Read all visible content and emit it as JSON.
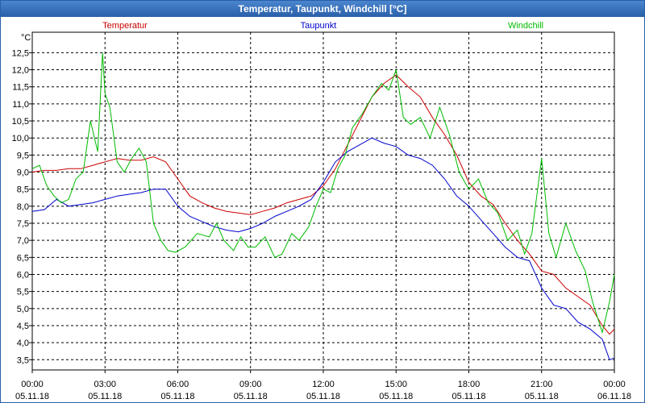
{
  "window": {
    "title": "Temperatur, Taupunkt, Windchill [°C]"
  },
  "chart_data": {
    "type": "line",
    "title": "Temperatur, Taupunkt, Windchill [°C]",
    "ylabel": "°C",
    "ylim": [
      3.2,
      13.1
    ],
    "xlim": [
      0,
      24
    ],
    "grid": true,
    "yticks": [
      3.5,
      4.0,
      4.5,
      5.0,
      5.5,
      6.0,
      6.5,
      7.0,
      7.5,
      8.0,
      8.5,
      9.0,
      9.5,
      10.0,
      10.5,
      11.0,
      11.5,
      12.0,
      12.5
    ],
    "ytick_labels": [
      "3,5",
      "4,0",
      "4,5",
      "5,0",
      "5,5",
      "6,0",
      "6,5",
      "7,0",
      "7,5",
      "8,0",
      "8,5",
      "9,0",
      "9,5",
      "10,0",
      "10,5",
      "11,0",
      "11,5",
      "12,0",
      "12,5"
    ],
    "xticks": [
      0,
      3,
      6,
      9,
      12,
      15,
      18,
      21,
      24
    ],
    "xtick_time_labels": [
      "00:00",
      "03:00",
      "06:00",
      "09:00",
      "12:00",
      "15:00",
      "18:00",
      "21:00",
      "00:00"
    ],
    "xtick_date_labels": [
      "05.11.18",
      "05.11.18",
      "05.11.18",
      "05.11.18",
      "05.11.18",
      "05.11.18",
      "05.11.18",
      "05.11.18",
      "06.11.18"
    ],
    "legend": [
      "Temperatur",
      "Taupunkt",
      "Windchill"
    ],
    "series": [
      {
        "name": "Temperatur",
        "color": "#cc0000",
        "x": [
          0,
          0.5,
          1,
          1.5,
          2,
          2.5,
          3,
          3.5,
          4,
          4.5,
          5,
          5.5,
          6,
          6.5,
          7,
          7.5,
          8,
          8.5,
          9,
          9.5,
          10,
          10.5,
          11,
          11.5,
          12,
          12.5,
          13,
          13.5,
          14,
          14.5,
          15,
          15.5,
          16,
          16.5,
          17,
          17.5,
          18,
          18.5,
          19,
          19.5,
          20,
          20.5,
          21,
          21.5,
          22,
          22.5,
          23,
          23.5,
          23.8,
          24
        ],
        "values": [
          9.0,
          9.05,
          9.05,
          9.1,
          9.1,
          9.2,
          9.3,
          9.4,
          9.35,
          9.35,
          9.45,
          9.3,
          8.8,
          8.3,
          8.1,
          7.95,
          7.85,
          7.8,
          7.75,
          7.85,
          7.95,
          8.1,
          8.2,
          8.3,
          8.6,
          9.1,
          9.8,
          10.5,
          11.2,
          11.6,
          11.85,
          11.5,
          11.2,
          10.6,
          10.1,
          9.5,
          8.7,
          8.3,
          8.05,
          7.5,
          7.0,
          6.6,
          6.1,
          6.0,
          5.6,
          5.35,
          5.1,
          4.5,
          4.25,
          4.4
        ]
      },
      {
        "name": "Taupunkt",
        "color": "#0000cc",
        "x": [
          0,
          0.5,
          1,
          1.5,
          2,
          2.5,
          3,
          3.5,
          4,
          4.5,
          5,
          5.5,
          6,
          6.5,
          7,
          7.5,
          8,
          8.5,
          9,
          9.5,
          10,
          10.5,
          11,
          11.5,
          12,
          12.5,
          13,
          13.5,
          14,
          14.5,
          15,
          15.5,
          16,
          16.5,
          17,
          17.5,
          18,
          18.5,
          19,
          19.5,
          20,
          20.5,
          21,
          21.5,
          22,
          22.5,
          23,
          23.5,
          23.8,
          24
        ],
        "values": [
          7.85,
          7.9,
          8.2,
          8.0,
          8.05,
          8.1,
          8.2,
          8.3,
          8.35,
          8.4,
          8.5,
          8.5,
          8.0,
          7.7,
          7.55,
          7.4,
          7.3,
          7.25,
          7.35,
          7.5,
          7.7,
          7.85,
          8.0,
          8.2,
          8.7,
          9.3,
          9.6,
          9.8,
          10.0,
          9.85,
          9.75,
          9.5,
          9.4,
          9.2,
          8.8,
          8.3,
          8.0,
          7.6,
          7.2,
          6.8,
          6.5,
          6.4,
          5.6,
          5.1,
          5.0,
          4.6,
          4.4,
          4.1,
          3.5,
          3.55
        ]
      },
      {
        "name": "Windchill",
        "color": "#00bb00",
        "x": [
          0,
          0.3,
          0.6,
          0.9,
          1.2,
          1.5,
          1.8,
          2.1,
          2.4,
          2.7,
          2.9,
          3.0,
          3.2,
          3.5,
          3.8,
          4.1,
          4.4,
          4.7,
          5.0,
          5.3,
          5.6,
          5.9,
          6.3,
          6.8,
          7.3,
          7.6,
          7.9,
          8.3,
          8.6,
          8.9,
          9.2,
          9.6,
          10.0,
          10.3,
          10.7,
          11.0,
          11.4,
          11.7,
          12.0,
          12.3,
          12.6,
          12.9,
          13.2,
          13.6,
          14.0,
          14.4,
          14.7,
          15.0,
          15.3,
          15.6,
          16.0,
          16.4,
          16.8,
          17.2,
          17.6,
          18.0,
          18.4,
          18.8,
          19.2,
          19.6,
          20.0,
          20.3,
          20.6,
          21.0,
          21.3,
          21.6,
          22.0,
          22.4,
          22.8,
          23.1,
          23.5,
          23.8,
          24.0
        ],
        "values": [
          9.1,
          9.2,
          8.6,
          8.3,
          8.1,
          8.2,
          8.8,
          9.0,
          10.5,
          9.6,
          12.5,
          11.3,
          10.9,
          9.3,
          9.0,
          9.4,
          9.7,
          9.3,
          7.5,
          7.0,
          6.7,
          6.65,
          6.8,
          7.2,
          7.1,
          7.5,
          7.0,
          6.7,
          7.1,
          6.8,
          6.8,
          7.1,
          6.5,
          6.6,
          7.2,
          7.0,
          7.4,
          8.0,
          8.5,
          8.4,
          9.1,
          9.5,
          10.3,
          10.7,
          11.2,
          11.6,
          11.4,
          12.0,
          10.6,
          10.4,
          10.6,
          10.0,
          10.9,
          10.1,
          9.0,
          8.5,
          8.8,
          8.1,
          7.8,
          7.0,
          7.3,
          6.6,
          7.2,
          9.4,
          7.2,
          6.5,
          7.5,
          6.7,
          6.1,
          5.2,
          4.3,
          5.2,
          6.0
        ]
      }
    ]
  }
}
